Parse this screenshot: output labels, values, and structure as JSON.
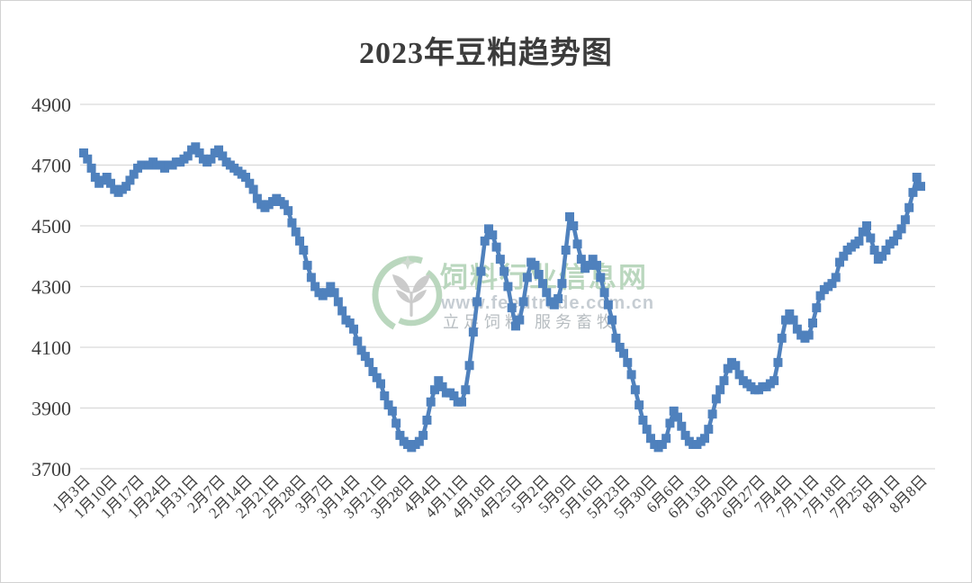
{
  "title": "2023年豆粕趋势图",
  "watermark": {
    "site_name": "饲料行业信息网",
    "url": "www.feedtrade.com.cn",
    "slogan": "立足饲料  服务畜牧"
  },
  "colors": {
    "series": "#4f81bd",
    "gridline": "#d9d9d9",
    "axis_text": "#3f3f3f",
    "title_text": "#3c3c3c",
    "watermark_green": "#b7d5bb",
    "watermark_url_gray": "#c4cbd1",
    "watermark_slogan_gray": "#b4babe",
    "watermark_glyph_gray": "#c9c9c9",
    "background": "#ffffff",
    "border": "#d2d2d2"
  },
  "chart_data": {
    "type": "line",
    "title": "2023年豆粕趋势图",
    "xlabel": "",
    "ylabel": "",
    "ylim": [
      3700,
      4900
    ],
    "y_ticks": [
      4900,
      4700,
      4500,
      4300,
      4100,
      3900,
      3700
    ],
    "grid": "horizontal",
    "legend": "none",
    "marker": "square",
    "x_tick_interval_days": 7,
    "x_tick_labels": [
      "1月3日",
      "1月10日",
      "1月17日",
      "1月24日",
      "1月31日",
      "2月7日",
      "2月14日",
      "2月21日",
      "2月28日",
      "3月7日",
      "3月14日",
      "3月21日",
      "3月28日",
      "4月4日",
      "4月11日",
      "4月18日",
      "4月25日",
      "5月2日",
      "5月9日",
      "5月16日",
      "5月23日",
      "5月30日",
      "6月6日",
      "6月13日",
      "6月20日",
      "6月27日",
      "7月4日",
      "7月11日",
      "7月18日",
      "7月25日",
      "8月1日",
      "8月8日"
    ],
    "values": [
      4740,
      4720,
      4690,
      4660,
      4640,
      4650,
      4660,
      4640,
      4620,
      4610,
      4620,
      4630,
      4650,
      4670,
      4690,
      4700,
      4700,
      4700,
      4710,
      4700,
      4700,
      4690,
      4700,
      4700,
      4710,
      4710,
      4720,
      4730,
      4750,
      4760,
      4740,
      4720,
      4710,
      4720,
      4740,
      4750,
      4730,
      4710,
      4700,
      4690,
      4680,
      4670,
      4660,
      4640,
      4620,
      4590,
      4570,
      4560,
      4570,
      4580,
      4590,
      4580,
      4570,
      4550,
      4510,
      4480,
      4450,
      4420,
      4370,
      4330,
      4300,
      4280,
      4270,
      4280,
      4300,
      4280,
      4250,
      4220,
      4190,
      4180,
      4160,
      4120,
      4090,
      4070,
      4050,
      4020,
      4000,
      3980,
      3940,
      3910,
      3890,
      3850,
      3810,
      3790,
      3780,
      3770,
      3780,
      3790,
      3810,
      3860,
      3920,
      3960,
      3990,
      3970,
      3950,
      3950,
      3940,
      3920,
      3920,
      3960,
      4040,
      4150,
      4250,
      4350,
      4450,
      4490,
      4470,
      4430,
      4390,
      4350,
      4300,
      4230,
      4170,
      4190,
      4250,
      4330,
      4380,
      4370,
      4340,
      4310,
      4280,
      4250,
      4240,
      4260,
      4310,
      4420,
      4530,
      4500,
      4440,
      4390,
      4360,
      4370,
      4390,
      4370,
      4330,
      4280,
      4240,
      4190,
      4130,
      4100,
      4080,
      4050,
      4010,
      3960,
      3910,
      3860,
      3830,
      3800,
      3780,
      3770,
      3780,
      3800,
      3850,
      3890,
      3870,
      3840,
      3810,
      3790,
      3780,
      3780,
      3790,
      3800,
      3830,
      3880,
      3930,
      3960,
      3990,
      4030,
      4050,
      4040,
      4010,
      3990,
      3980,
      3970,
      3960,
      3960,
      3970,
      3970,
      3980,
      3990,
      4050,
      4130,
      4190,
      4210,
      4190,
      4160,
      4140,
      4130,
      4140,
      4180,
      4230,
      4270,
      4290,
      4300,
      4310,
      4330,
      4380,
      4400,
      4420,
      4430,
      4440,
      4450,
      4480,
      4500,
      4460,
      4420,
      4390,
      4400,
      4420,
      4440,
      4450,
      4470,
      4490,
      4520,
      4560,
      4610,
      4660,
      4630
    ]
  }
}
